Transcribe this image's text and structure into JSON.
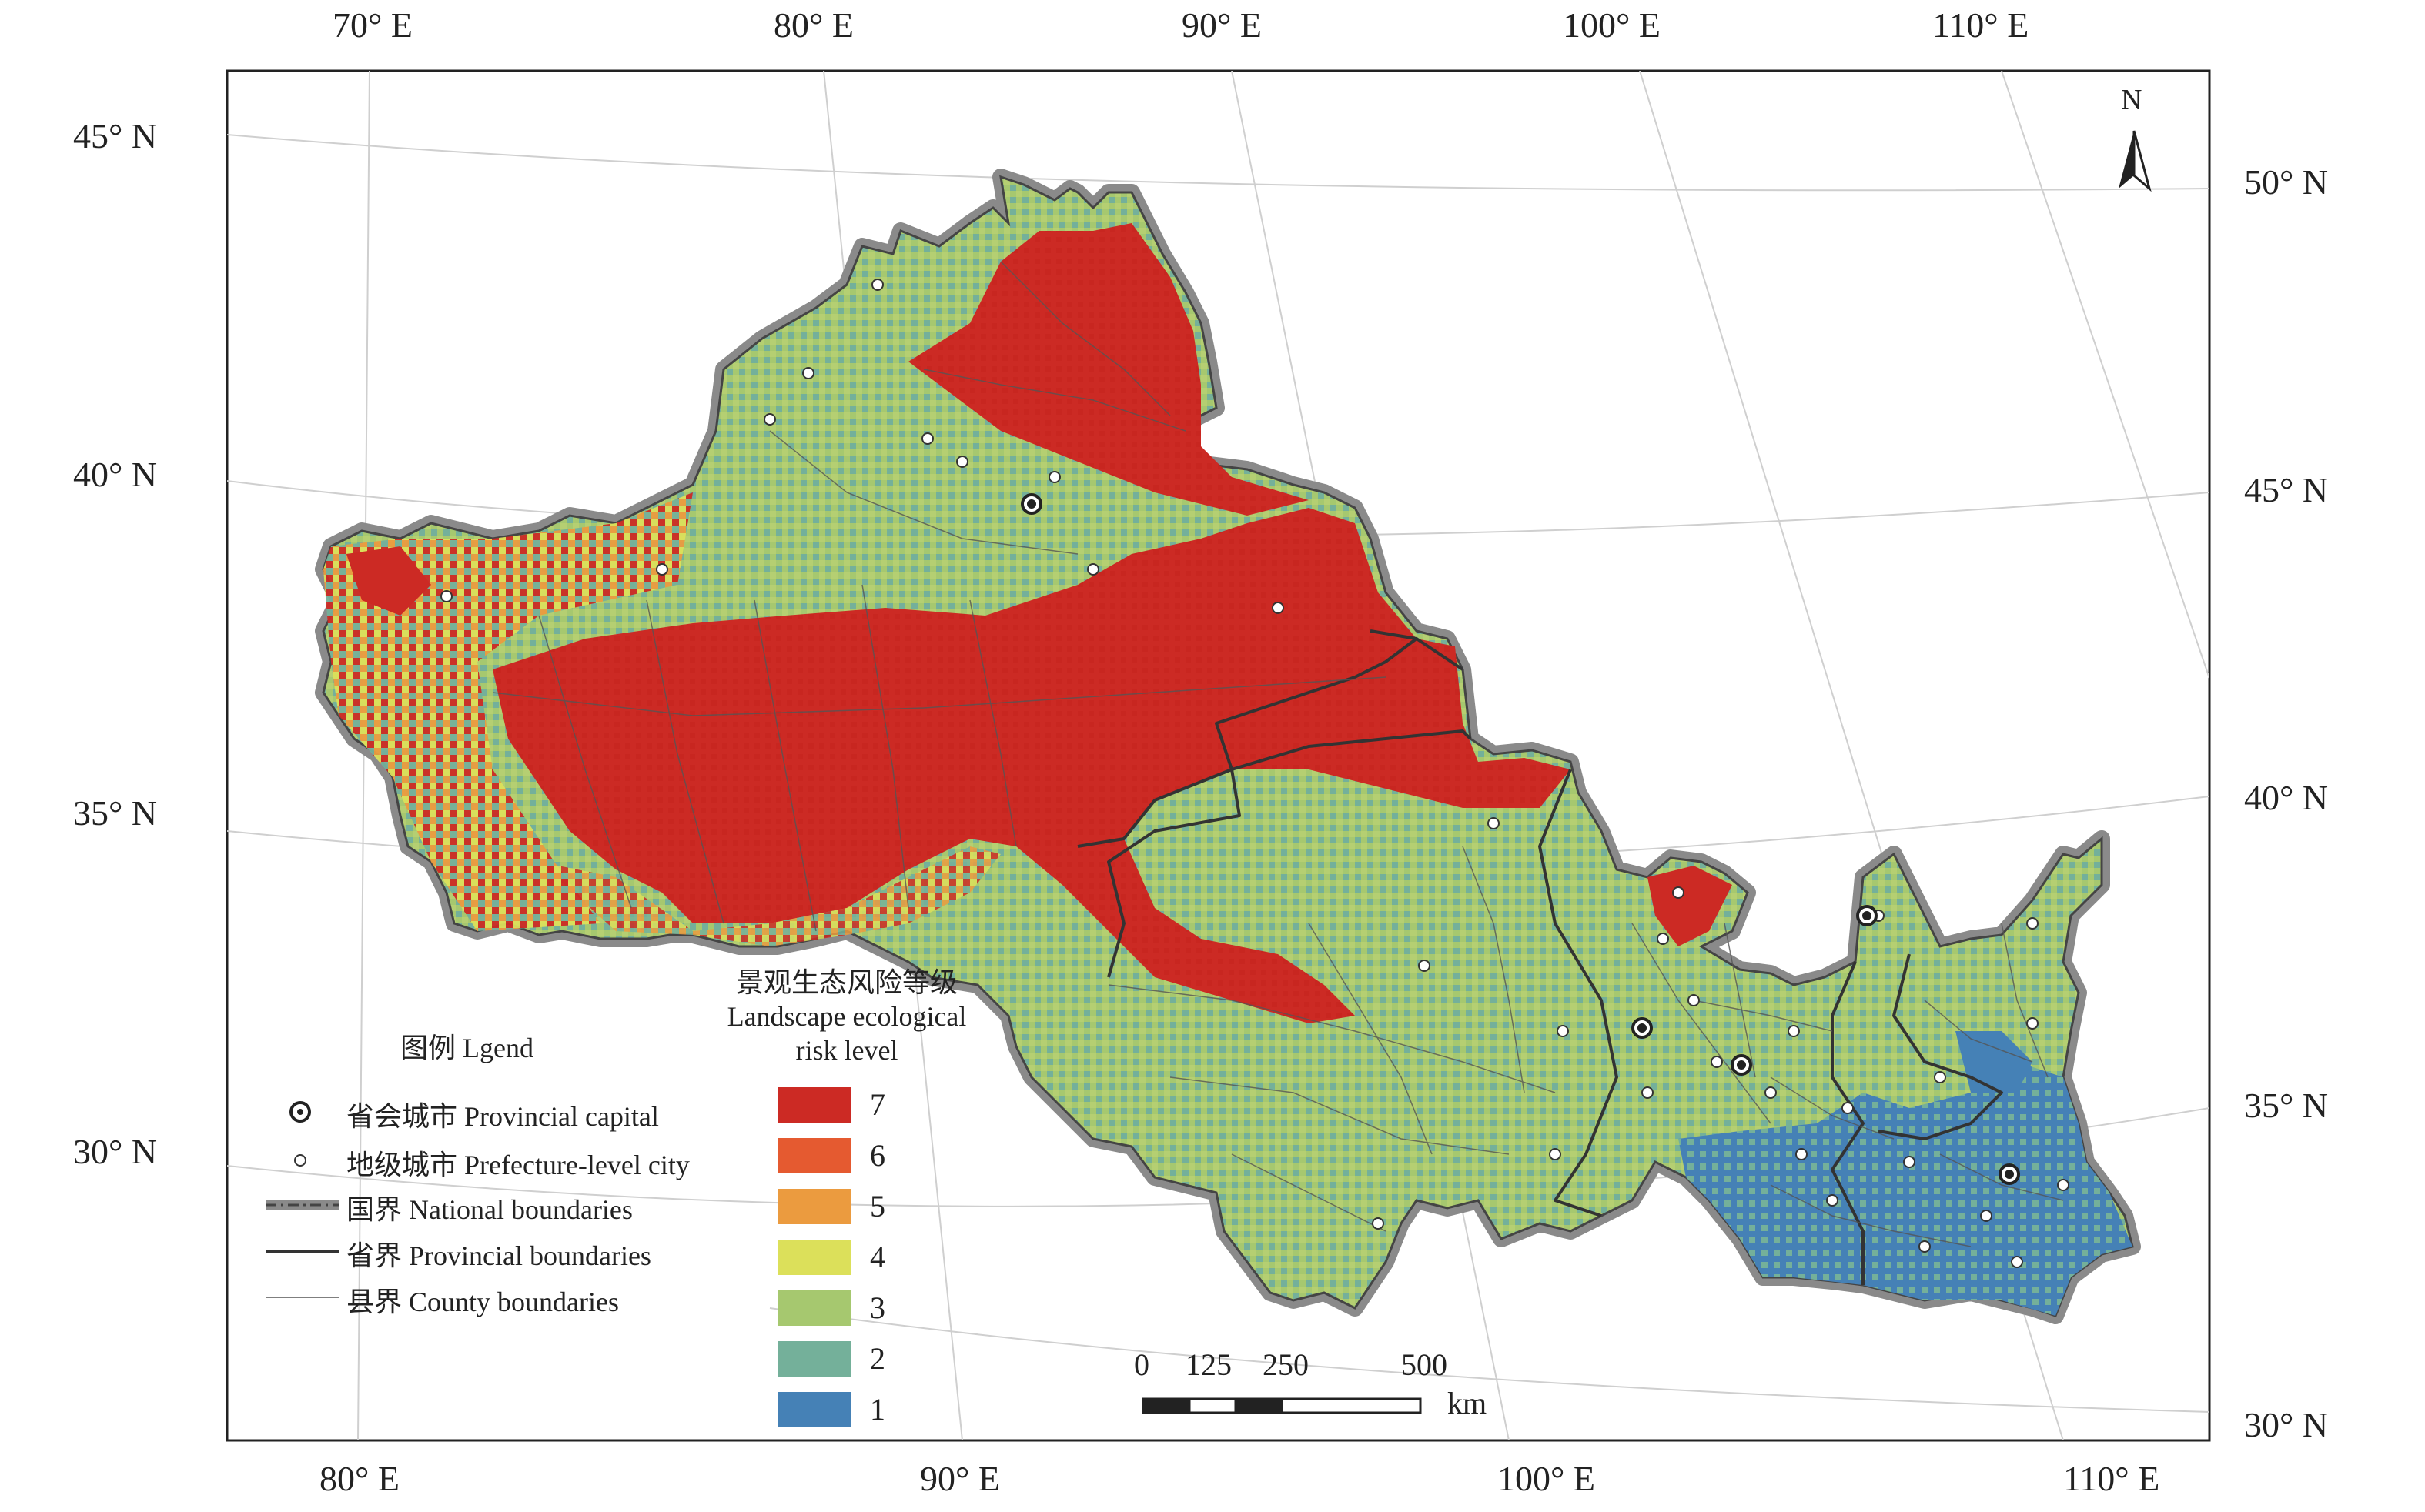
{
  "axes": {
    "top_lon": [
      "70° E",
      "80° E",
      "90° E",
      "100° E",
      "110° E"
    ],
    "bottom_lon": [
      "80° E",
      "90° E",
      "100° E",
      "110° E"
    ],
    "left_lat": [
      "45° N",
      "40° N",
      "35° N",
      "30° N"
    ],
    "right_lat": [
      "50° N",
      "45° N",
      "40° N",
      "35° N",
      "30° N"
    ]
  },
  "legend": {
    "title": "图例 Lgend",
    "items": [
      {
        "icon": "provincial-capital-icon",
        "label": "省会城市 Provincial capital"
      },
      {
        "icon": "prefecture-city-icon",
        "label": "地级城市 Prefecture-level city"
      },
      {
        "icon": "national-boundary-icon",
        "label": "国界 National boundaries"
      },
      {
        "icon": "provincial-boundary-icon",
        "label": "省界 Provincial boundaries"
      },
      {
        "icon": "county-boundary-icon",
        "label": "县界 County boundaries"
      }
    ]
  },
  "risk_legend": {
    "title_cn": "景观生态风险等级",
    "title_en1": "Landscape ecological",
    "title_en2": "risk level",
    "levels": [
      {
        "label": "7",
        "color": "#cc2a24"
      },
      {
        "label": "6",
        "color": "#e55a30"
      },
      {
        "label": "5",
        "color": "#eb9b3f"
      },
      {
        "label": "4",
        "color": "#dce05a"
      },
      {
        "label": "3",
        "color": "#a6c86f"
      },
      {
        "label": "2",
        "color": "#74b09a"
      },
      {
        "label": "1",
        "color": "#4581b6"
      }
    ]
  },
  "scale_bar": {
    "ticks": [
      "0",
      "125",
      "250",
      "500"
    ],
    "unit": "km"
  },
  "north_arrow": {
    "label": "N"
  },
  "colors": {
    "frame": "#222222",
    "graticule": "#cfcfcf",
    "national_boundary": "#8a8a8a",
    "provincial_boundary": "#333333",
    "county_boundary": "#555555"
  }
}
